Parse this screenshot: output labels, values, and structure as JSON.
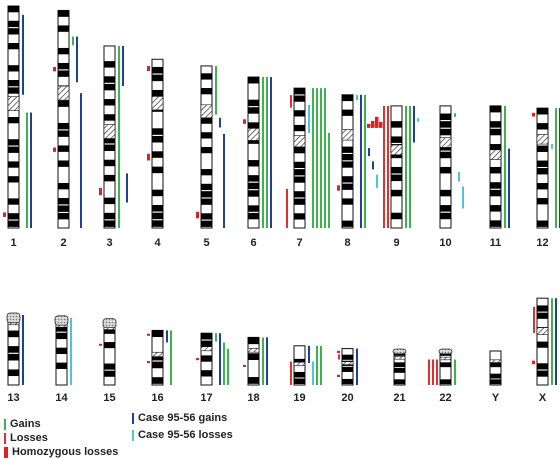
{
  "colors": {
    "gain": "#3cb44b",
    "loss": "#e03030",
    "homozygous": "#e02020",
    "case_gain": "#1f3f99",
    "case_loss": "#4fc3dc"
  },
  "legend": {
    "gains": "Gains",
    "losses": "Losses",
    "homozygous": "Homozygous losses",
    "case_gains": "Case 95-56 gains",
    "case_losses": "Case 95-56 losses"
  },
  "chromosomes": [
    {
      "label": "1",
      "row": 1,
      "size": 1.0,
      "centromere": 0.44,
      "events": [
        {
          "type": "case_gain",
          "from": 0.04,
          "to": 0.4
        },
        {
          "type": "gain",
          "from": 0.48,
          "to": 1.0
        },
        {
          "type": "case_gain",
          "from": 0.48,
          "to": 1.0
        },
        {
          "type": "homozygous",
          "from": 0.93,
          "to": 0.95
        }
      ]
    },
    {
      "label": "2",
      "row": 1,
      "size": 0.98,
      "centromere": 0.38,
      "events": [
        {
          "type": "gain",
          "from": 0.12,
          "to": 0.16
        },
        {
          "type": "case_gain",
          "from": 0.12,
          "to": 0.33
        },
        {
          "type": "homozygous",
          "from": 0.26,
          "to": 0.28
        },
        {
          "type": "case_gain",
          "from": 0.38,
          "to": 1.0
        },
        {
          "type": "homozygous",
          "from": 0.63,
          "to": 0.65
        }
      ]
    },
    {
      "label": "3",
      "row": 1,
      "size": 0.82,
      "centromere": 0.47,
      "events": [
        {
          "type": "gain",
          "from": 0.0,
          "to": 1.0
        },
        {
          "type": "case_gain",
          "from": 0.0,
          "to": 0.22
        },
        {
          "type": "case_gain",
          "from": 0.7,
          "to": 0.86
        },
        {
          "type": "homozygous",
          "from": 0.78,
          "to": 0.82
        }
      ]
    },
    {
      "label": "4",
      "row": 1,
      "size": 0.76,
      "centromere": 0.26,
      "events": [
        {
          "type": "homozygous",
          "from": 0.04,
          "to": 0.07
        },
        {
          "type": "homozygous",
          "from": 0.56,
          "to": 0.6
        }
      ]
    },
    {
      "label": "5",
      "row": 1,
      "size": 0.73,
      "centromere": 0.28,
      "events": [
        {
          "type": "gain",
          "from": 0.0,
          "to": 0.3
        },
        {
          "type": "case_gain",
          "from": 0.32,
          "to": 0.38
        },
        {
          "type": "case_gain",
          "from": 0.42,
          "to": 1.0
        },
        {
          "type": "homozygous",
          "from": 0.9,
          "to": 0.94
        }
      ]
    },
    {
      "label": "6",
      "row": 1,
      "size": 0.68,
      "centromere": 0.38,
      "events": [
        {
          "type": "gain",
          "from": 0.0,
          "to": 1.0
        },
        {
          "type": "gain",
          "from": 0.0,
          "to": 1.0
        },
        {
          "type": "case_gain",
          "from": 0.0,
          "to": 1.0
        },
        {
          "type": "homozygous",
          "from": 0.28,
          "to": 0.31
        }
      ]
    },
    {
      "label": "7",
      "row": 1,
      "size": 0.63,
      "centromere": 0.38,
      "events": [
        {
          "type": "loss",
          "from": 0.05,
          "to": 0.14
        },
        {
          "type": "case_loss",
          "from": 0.12,
          "to": 0.32
        },
        {
          "type": "gain",
          "from": 0.0,
          "to": 1.0
        },
        {
          "type": "gain",
          "from": 0.0,
          "to": 1.0
        },
        {
          "type": "gain",
          "from": 0.0,
          "to": 1.0
        },
        {
          "type": "gain",
          "from": 0.0,
          "to": 1.0
        },
        {
          "type": "gain",
          "from": 0.32,
          "to": 1.0
        },
        {
          "type": "loss",
          "from": 0.72,
          "to": 1.0
        }
      ]
    },
    {
      "label": "8",
      "row": 1,
      "size": 0.6,
      "centromere": 0.3,
      "events": [
        {
          "type": "case_loss",
          "from": 0.0,
          "to": 0.04
        },
        {
          "type": "case_gain",
          "from": 0.0,
          "to": 1.0
        },
        {
          "type": "gain",
          "from": 0.0,
          "to": 1.0
        },
        {
          "type": "case_gain",
          "from": 0.4,
          "to": 0.46
        },
        {
          "type": "case_gain",
          "from": 0.5,
          "to": 0.56
        },
        {
          "type": "homozygous",
          "from": 0.68,
          "to": 0.72
        },
        {
          "type": "case_loss",
          "from": 0.6,
          "to": 0.7
        }
      ]
    },
    {
      "label": "9",
      "row": 1,
      "size": 0.55,
      "centromere": 0.36,
      "events": [
        {
          "type": "loss",
          "from": 0.0,
          "to": 1.0
        },
        {
          "type": "loss",
          "from": 0.0,
          "to": 1.0
        },
        {
          "type": "gain",
          "from": 0.0,
          "to": 1.0
        },
        {
          "type": "gain",
          "from": 0.0,
          "to": 1.0
        },
        {
          "type": "case_gain",
          "from": 0.0,
          "to": 0.3
        },
        {
          "type": "case_loss",
          "from": 0.1,
          "to": 0.13
        }
      ]
    },
    {
      "label": "10",
      "row": 1,
      "size": 0.55,
      "centromere": 0.3,
      "events": [
        {
          "type": "gain",
          "from": 0.06,
          "to": 0.09
        },
        {
          "type": "case_loss",
          "from": 0.54,
          "to": 0.62
        },
        {
          "type": "case_loss",
          "from": 0.66,
          "to": 0.84
        }
      ]
    },
    {
      "label": "11",
      "row": 1,
      "size": 0.55,
      "centromere": 0.4,
      "events": [
        {
          "type": "gain",
          "from": 0.0,
          "to": 1.0
        },
        {
          "type": "case_gain",
          "from": 0.35,
          "to": 1.0
        }
      ]
    },
    {
      "label": "12",
      "row": 1,
      "size": 0.54,
      "centromere": 0.26,
      "events": [
        {
          "type": "homozygous",
          "from": 0.04,
          "to": 0.07
        },
        {
          "type": "case_loss",
          "from": 0.3,
          "to": 0.34
        },
        {
          "type": "gain",
          "from": 0.0,
          "to": 1.0
        },
        {
          "type": "case_gain",
          "from": 0.0,
          "to": 1.0
        }
      ]
    },
    {
      "label": "13",
      "row": 2,
      "size": 0.5,
      "centromere": 0.1,
      "acro": true,
      "events": [
        {
          "type": "case_gain",
          "from": 0.0,
          "to": 1.0
        }
      ]
    },
    {
      "label": "14",
      "row": 2,
      "size": 0.48,
      "centromere": 0.1,
      "acro": true,
      "events": [
        {
          "type": "case_loss",
          "from": 0.0,
          "to": 1.0
        }
      ]
    },
    {
      "label": "15",
      "row": 2,
      "size": 0.46,
      "centromere": 0.1,
      "acro": true,
      "events": [
        {
          "type": "homozygous",
          "from": 0.36,
          "to": 0.39
        }
      ]
    },
    {
      "label": "16",
      "row": 2,
      "size": 0.39,
      "centromere": 0.44,
      "events": [
        {
          "type": "homozygous",
          "from": 0.06,
          "to": 0.1
        },
        {
          "type": "case_gain",
          "from": 0.0,
          "to": 0.22
        },
        {
          "type": "gain",
          "from": 0.0,
          "to": 1.0
        },
        {
          "type": "homozygous",
          "from": 0.56,
          "to": 0.6
        }
      ]
    },
    {
      "label": "17",
      "row": 2,
      "size": 0.37,
      "centromere": 0.3,
      "events": [
        {
          "type": "gain",
          "from": 0.0,
          "to": 0.16
        },
        {
          "type": "case_gain",
          "from": 0.0,
          "to": 1.0
        },
        {
          "type": "gain",
          "from": 0.18,
          "to": 1.0
        },
        {
          "type": "gain",
          "from": 0.3,
          "to": 1.0
        },
        {
          "type": "homozygous",
          "from": 0.48,
          "to": 0.52
        }
      ]
    },
    {
      "label": "18",
      "row": 2,
      "size": 0.34,
      "centromere": 0.27,
      "events": [
        {
          "type": "gain",
          "from": 0.0,
          "to": 1.0
        },
        {
          "type": "case_gain",
          "from": 0.0,
          "to": 1.0
        },
        {
          "type": "homozygous",
          "from": 0.58,
          "to": 0.62
        }
      ]
    },
    {
      "label": "19",
      "row": 2,
      "size": 0.28,
      "centromere": 0.46,
      "events": [
        {
          "type": "case_gain",
          "from": 0.0,
          "to": 0.44
        },
        {
          "type": "case_loss",
          "from": 0.4,
          "to": 1.0
        },
        {
          "type": "loss",
          "from": 0.4,
          "to": 1.0
        },
        {
          "type": "gain",
          "from": 0.0,
          "to": 1.0
        },
        {
          "type": "gain",
          "from": 0.0,
          "to": 1.0
        }
      ]
    },
    {
      "label": "20",
      "row": 2,
      "size": 0.26,
      "centromere": 0.4,
      "events": [
        {
          "type": "homozygous",
          "from": 0.06,
          "to": 0.12
        },
        {
          "type": "loss",
          "from": 0.16,
          "to": 0.3
        },
        {
          "type": "case_gain",
          "from": 0.0,
          "to": 1.0
        },
        {
          "type": "homozygous",
          "from": 0.72,
          "to": 0.78
        }
      ]
    },
    {
      "label": "21",
      "row": 2,
      "size": 0.22,
      "centromere": 0.2,
      "acro": true,
      "events": []
    },
    {
      "label": "22",
      "row": 2,
      "size": 0.2,
      "centromere": 0.22,
      "acro": true,
      "events": [
        {
          "type": "loss",
          "from": 0.25,
          "to": 1.0
        },
        {
          "type": "loss",
          "from": 0.25,
          "to": 1.0
        },
        {
          "type": "loss",
          "from": 0.25,
          "to": 1.0
        },
        {
          "type": "gain",
          "from": 0.25,
          "to": 1.0
        }
      ]
    },
    {
      "label": "Y",
      "row": 2,
      "size": 0.2,
      "centromere": 0.3,
      "events": []
    },
    {
      "label": "X",
      "row": 2,
      "size": 0.62,
      "centromere": 0.38,
      "events": [
        {
          "type": "loss",
          "from": 0.1,
          "to": 0.4
        },
        {
          "type": "gain",
          "from": 0.0,
          "to": 1.0
        },
        {
          "type": "case_gain",
          "from": 0.0,
          "to": 1.0
        },
        {
          "type": "homozygous",
          "from": 0.72,
          "to": 0.76
        }
      ]
    }
  ]
}
